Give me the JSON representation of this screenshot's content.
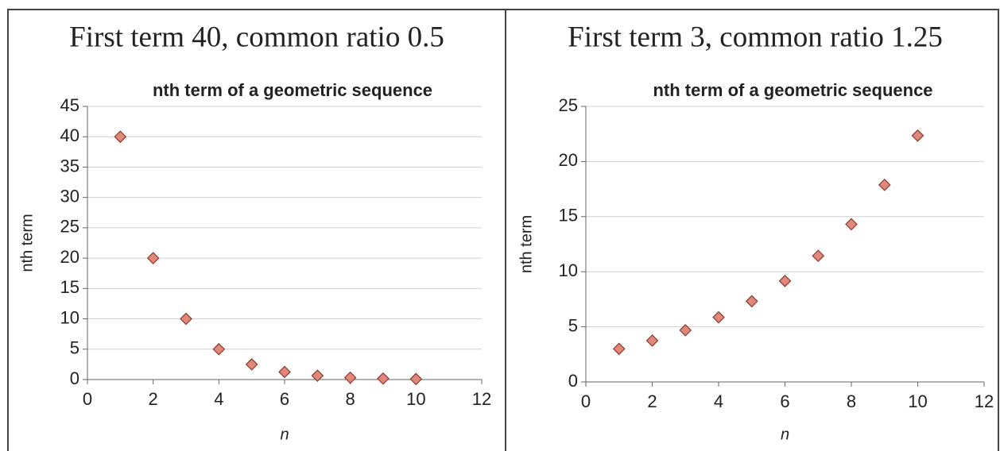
{
  "chart_data": [
    {
      "type": "scatter",
      "header": "First term 40, common ratio 0.5",
      "title": "nth term of a geometric sequence",
      "x_label": "n",
      "y_label": "nth term",
      "x": [
        1,
        2,
        3,
        4,
        5,
        6,
        7,
        8,
        9,
        10
      ],
      "values": [
        40,
        20,
        10,
        5,
        2.5,
        1.25,
        0.63,
        0.31,
        0.16,
        0.08
      ],
      "color": "#e0897a",
      "xlim": [
        0,
        12
      ],
      "xticks": [
        0,
        2,
        4,
        6,
        8,
        10,
        12
      ],
      "ylim": [
        0,
        45
      ],
      "yticks": [
        0,
        5,
        10,
        15,
        20,
        25,
        30,
        35,
        40,
        45
      ],
      "grid": true
    },
    {
      "type": "scatter",
      "header": "First term 3, common ratio 1.25",
      "title": "nth term of a geometric sequence",
      "x_label": "n",
      "y_label": "nth term",
      "x": [
        1,
        2,
        3,
        4,
        5,
        6,
        7,
        8,
        9,
        10
      ],
      "values": [
        3,
        3.75,
        4.69,
        5.86,
        7.32,
        9.16,
        11.44,
        14.31,
        17.88,
        22.35
      ],
      "color": "#e0897a",
      "xlim": [
        0,
        12
      ],
      "xticks": [
        0,
        2,
        4,
        6,
        8,
        10,
        12
      ],
      "ylim": [
        0,
        25
      ],
      "yticks": [
        0,
        5,
        10,
        15,
        20,
        25
      ],
      "grid": true
    }
  ]
}
